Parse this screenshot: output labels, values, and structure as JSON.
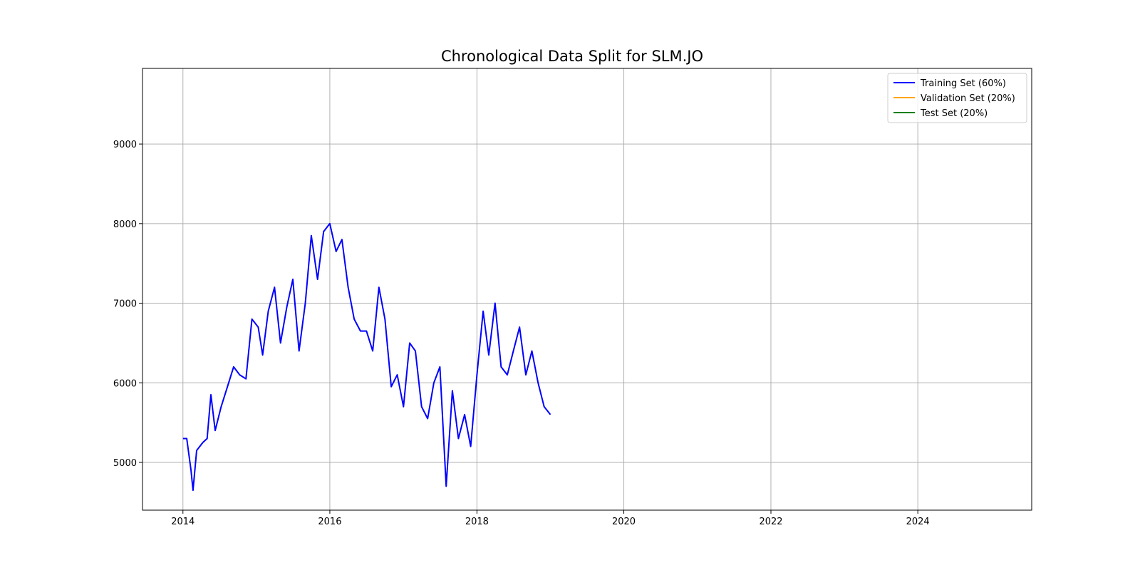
{
  "chart_data": {
    "type": "line",
    "title": "Chronological Data Split for SLM.JO",
    "xlabel": "",
    "ylabel": "",
    "xlim": [
      "2013-06-14",
      "2025-07-20"
    ],
    "ylim": [
      4400,
      9950
    ],
    "x_ticks": [
      {
        "value": "2014-01-01",
        "label": "2014"
      },
      {
        "value": "2016-01-01",
        "label": "2016"
      },
      {
        "value": "2018-01-01",
        "label": "2018"
      },
      {
        "value": "2020-01-01",
        "label": "2020"
      },
      {
        "value": "2022-01-01",
        "label": "2022"
      },
      {
        "value": "2024-01-01",
        "label": "2024"
      }
    ],
    "y_ticks": [
      5000,
      6000,
      7000,
      8000,
      9000
    ],
    "grid": true,
    "legend": "top-right",
    "series": [
      {
        "name": "Training Set (60%)",
        "color": "#0000ff",
        "points": [
          [
            "2014-01-01",
            5300
          ],
          [
            "2014-01-20",
            5300
          ],
          [
            "2014-02-10",
            4900
          ],
          [
            "2014-02-20",
            4650
          ],
          [
            "2014-03-10",
            5150
          ],
          [
            "2014-04-10",
            5250
          ],
          [
            "2014-05-01",
            5300
          ],
          [
            "2014-05-20",
            5850
          ],
          [
            "2014-06-10",
            5400
          ],
          [
            "2014-07-10",
            5700
          ],
          [
            "2014-08-10",
            5950
          ],
          [
            "2014-09-10",
            6200
          ],
          [
            "2014-10-10",
            6100
          ],
          [
            "2014-11-10",
            6050
          ],
          [
            "2014-12-10",
            6800
          ],
          [
            "2015-01-10",
            6700
          ],
          [
            "2015-02-01",
            6350
          ],
          [
            "2015-03-01",
            6900
          ],
          [
            "2015-04-01",
            7200
          ],
          [
            "2015-05-01",
            6500
          ],
          [
            "2015-06-01",
            6950
          ],
          [
            "2015-07-01",
            7300
          ],
          [
            "2015-08-01",
            6400
          ],
          [
            "2015-09-01",
            7000
          ],
          [
            "2015-10-01",
            7850
          ],
          [
            "2015-11-01",
            7300
          ],
          [
            "2015-12-01",
            7900
          ],
          [
            "2016-01-01",
            8000
          ],
          [
            "2016-02-01",
            7650
          ],
          [
            "2016-03-01",
            7800
          ],
          [
            "2016-04-01",
            7200
          ],
          [
            "2016-05-01",
            6800
          ],
          [
            "2016-06-01",
            6650
          ],
          [
            "2016-07-01",
            6650
          ],
          [
            "2016-08-01",
            6400
          ],
          [
            "2016-09-01",
            7200
          ],
          [
            "2016-10-01",
            6800
          ],
          [
            "2016-11-01",
            5950
          ],
          [
            "2016-12-01",
            6100
          ],
          [
            "2017-01-01",
            5700
          ],
          [
            "2017-02-01",
            6500
          ],
          [
            "2017-03-01",
            6400
          ],
          [
            "2017-04-01",
            5700
          ],
          [
            "2017-05-01",
            5550
          ],
          [
            "2017-06-01",
            6000
          ],
          [
            "2017-07-01",
            6200
          ],
          [
            "2017-08-01",
            4700
          ],
          [
            "2017-09-01",
            5900
          ],
          [
            "2017-10-01",
            5300
          ],
          [
            "2017-11-01",
            5600
          ],
          [
            "2017-12-01",
            5200
          ],
          [
            "2018-01-01",
            6100
          ],
          [
            "2018-02-01",
            6900
          ],
          [
            "2018-03-01",
            6350
          ],
          [
            "2018-04-01",
            7000
          ],
          [
            "2018-05-01",
            6200
          ],
          [
            "2018-06-01",
            6100
          ],
          [
            "2018-07-01",
            6400
          ],
          [
            "2018-08-01",
            6700
          ],
          [
            "2018-09-01",
            6100
          ],
          [
            "2018-10-01",
            6400
          ],
          [
            "2018-11-01",
            6000
          ],
          [
            "2018-12-01",
            5700
          ],
          [
            "2019-01-01",
            5600
          ]
        ]
      },
      {
        "name": "Validation Set (20%)",
        "color": "#ffa500",
        "points": []
      },
      {
        "name": "Test Set (20%)",
        "color": "#008000",
        "points": []
      }
    ]
  }
}
